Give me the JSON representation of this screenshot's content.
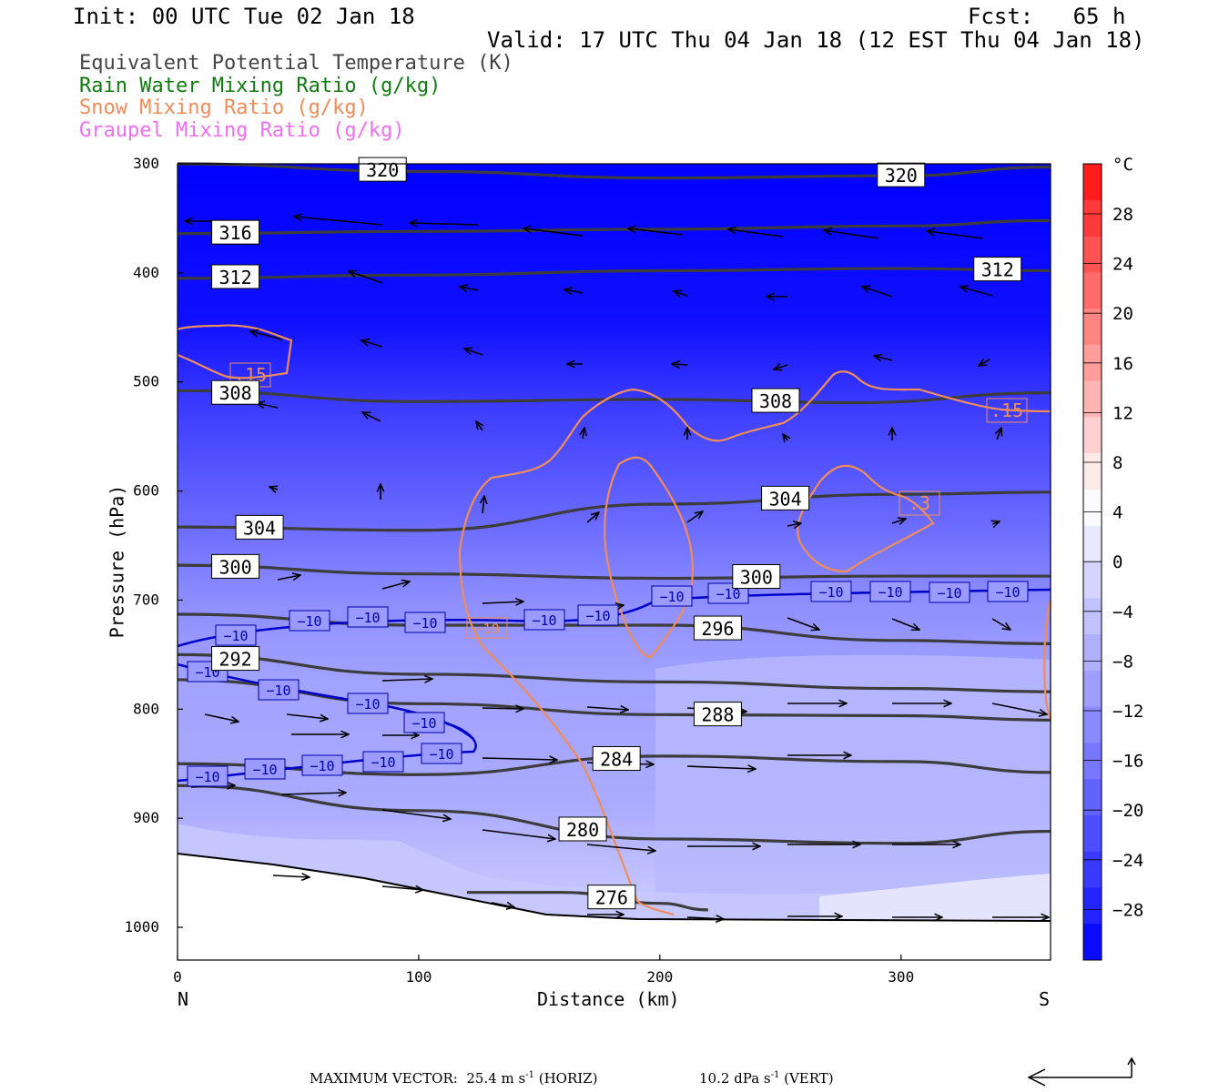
{
  "header": {
    "init": "Init: 00 UTC Tue 02 Jan 18",
    "fcst": "Fcst:   65 h",
    "valid": "Valid: 17 UTC Thu 04 Jan 18 (12 EST Thu 04 Jan 18)"
  },
  "legend": [
    {
      "text": "Equivalent Potential Temperature (K)",
      "color": "#444444"
    },
    {
      "text": "Rain Water Mixing Ratio (g/kg)",
      "color": "#127a12"
    },
    {
      "text": "Snow Mixing Ratio (g/kg)",
      "color": "#f08c5a"
    },
    {
      "text": "Graupel Mixing Ratio (g/kg)",
      "color": "#f06ef0"
    }
  ],
  "footer": {
    "max_vector": "MAXIMUM VECTOR:  25.4 m s",
    "exp": "-1",
    "horiz": " (HORIZ)",
    "vert_val": "10.2 dPa s",
    "vert": " (VERT)"
  },
  "chart_data": {
    "type": "cross-section",
    "xlabel": "Distance (km)",
    "ylabel": "Pressure (hPa)",
    "xlim": [
      0,
      362
    ],
    "ylim": [
      300,
      1030
    ],
    "x_ticks": [
      0,
      100,
      200,
      300
    ],
    "y_ticks": [
      300,
      400,
      500,
      600,
      700,
      800,
      900,
      1000
    ],
    "x_end_labels": {
      "left": "N",
      "right": "S"
    },
    "colorbar": {
      "unit": "°C",
      "levels": [
        28,
        24,
        20,
        16,
        12,
        8,
        4,
        0,
        -4,
        -8,
        -12,
        -16,
        -20,
        -24,
        -28
      ],
      "label_text": [
        "28",
        "24",
        "20",
        "16",
        "12",
        "8",
        "4",
        "0",
        "−4",
        "−8",
        "−12",
        "−16",
        "−20",
        "−24",
        "−28"
      ],
      "colors": [
        "#ff1c1c",
        "#ff3a3a",
        "#ff5252",
        "#ff6a6a",
        "#ff8484",
        "#ff9c9c",
        "#ffb4b4",
        "#ffd0d0",
        "#ffeaea",
        "#fafaff",
        "#e8e8ff",
        "#d4d4ff",
        "#c2c2ff",
        "#b0b0ff",
        "#9e9eff",
        "#8a8aff",
        "#7676ff",
        "#6262ff",
        "#4e4eff",
        "#3a3aff",
        "#2424ff",
        "#0a0aff"
      ]
    },
    "theta_e_contours": [
      {
        "value": 320,
        "label": "320",
        "points": [
          [
            0,
            300
          ],
          [
            100,
            307
          ],
          [
            200,
            313
          ],
          [
            300,
            311
          ],
          [
            362,
            303
          ]
        ]
      },
      {
        "value": 316,
        "label": "316",
        "points": [
          [
            0,
            364
          ],
          [
            100,
            362
          ],
          [
            200,
            360
          ],
          [
            300,
            357
          ],
          [
            362,
            352
          ]
        ]
      },
      {
        "value": 312,
        "label": "312",
        "points": [
          [
            0,
            405
          ],
          [
            100,
            402
          ],
          [
            200,
            398
          ],
          [
            300,
            396
          ],
          [
            362,
            398
          ]
        ]
      },
      {
        "value": 308,
        "label": "308",
        "points": [
          [
            0,
            508
          ],
          [
            100,
            518
          ],
          [
            200,
            516
          ],
          [
            280,
            519
          ],
          [
            362,
            510
          ]
        ]
      },
      {
        "value": 304,
        "label": "304",
        "points": [
          [
            0,
            633
          ],
          [
            100,
            636
          ],
          [
            200,
            612
          ],
          [
            300,
            603
          ],
          [
            362,
            601
          ]
        ]
      },
      {
        "value": 300,
        "label": "300",
        "points": [
          [
            0,
            668
          ],
          [
            100,
            676
          ],
          [
            200,
            680
          ],
          [
            300,
            678
          ],
          [
            362,
            678
          ]
        ]
      },
      {
        "value": 296,
        "label": "296",
        "points": [
          [
            0,
            713
          ],
          [
            100,
            723
          ],
          [
            200,
            723
          ],
          [
            300,
            737
          ],
          [
            362,
            740
          ]
        ]
      },
      {
        "value": 292,
        "label": "292",
        "points": [
          [
            0,
            750
          ],
          [
            100,
            768
          ],
          [
            200,
            775
          ],
          [
            300,
            781
          ],
          [
            362,
            784
          ]
        ]
      },
      {
        "value": 288,
        "label": "288",
        "points": [
          [
            0,
            773
          ],
          [
            100,
            795
          ],
          [
            200,
            805
          ],
          [
            300,
            806
          ],
          [
            362,
            810
          ]
        ]
      },
      {
        "value": 284,
        "label": "284",
        "points": [
          [
            0,
            850
          ],
          [
            100,
            860
          ],
          [
            200,
            843
          ],
          [
            300,
            848
          ],
          [
            362,
            858
          ]
        ]
      },
      {
        "value": 280,
        "label": "280",
        "points": [
          [
            0,
            870
          ],
          [
            100,
            893
          ],
          [
            200,
            919
          ],
          [
            300,
            923
          ],
          [
            362,
            912
          ]
        ]
      },
      {
        "value": 276,
        "label": "276",
        "points": [
          [
            120,
            968
          ],
          [
            160,
            968
          ],
          [
            200,
            978
          ],
          [
            220,
            984
          ]
        ]
      }
    ],
    "temperature_minus10_labels": [
      "−10",
      "−10",
      "−10",
      "−10",
      "−10",
      "−10",
      "−10",
      "−10",
      "−10",
      "−10",
      "−10",
      "−10",
      "−10",
      "−10",
      "−10",
      "−10",
      "−10",
      "−10",
      "−10",
      "−10",
      "−10",
      "−10"
    ],
    "snow_labels": [
      ".15",
      ".15",
      ".3",
      ".15"
    ]
  }
}
